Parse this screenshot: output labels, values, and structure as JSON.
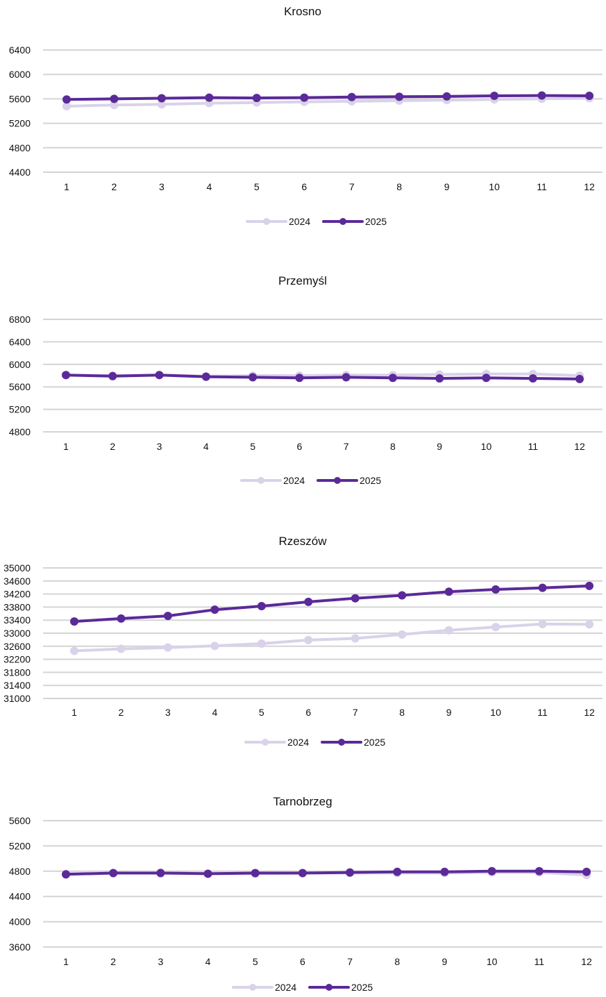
{
  "chart_data": [
    {
      "type": "line",
      "title": "Krosno",
      "categories": [
        "1",
        "2",
        "3",
        "4",
        "5",
        "6",
        "7",
        "8",
        "9",
        "10",
        "11",
        "12"
      ],
      "y_ticks": [
        4400,
        4800,
        5200,
        5600,
        6000,
        6400
      ],
      "ylim": [
        4400,
        6400
      ],
      "grid": true,
      "legend_position": "bottom",
      "series": [
        {
          "name": "2024",
          "color": "#d9d2e9",
          "values": [
            5480,
            5500,
            5510,
            5530,
            5540,
            5550,
            5560,
            5570,
            5580,
            5590,
            5600,
            5610
          ]
        },
        {
          "name": "2025",
          "color": "#5b2a99",
          "values": [
            5590,
            5600,
            5610,
            5620,
            5615,
            5620,
            5630,
            5635,
            5640,
            5650,
            5655,
            5650
          ]
        }
      ]
    },
    {
      "type": "line",
      "title": "Przemyśl",
      "categories": [
        "1",
        "2",
        "3",
        "4",
        "5",
        "6",
        "7",
        "8",
        "9",
        "10",
        "11",
        "12"
      ],
      "y_ticks": [
        4800,
        5200,
        5600,
        6000,
        6400,
        6800
      ],
      "ylim": [
        4800,
        6800
      ],
      "grid": true,
      "legend_position": "bottom",
      "series": [
        {
          "name": "2024",
          "color": "#d9d2e9",
          "values": [
            5810,
            5800,
            5810,
            5790,
            5800,
            5800,
            5810,
            5810,
            5820,
            5830,
            5830,
            5800
          ]
        },
        {
          "name": "2025",
          "color": "#5b2a99",
          "values": [
            5810,
            5790,
            5810,
            5780,
            5770,
            5760,
            5770,
            5760,
            5750,
            5760,
            5750,
            5740
          ]
        }
      ]
    },
    {
      "type": "line",
      "title": "Rzeszów",
      "categories": [
        "1",
        "2",
        "3",
        "4",
        "5",
        "6",
        "7",
        "8",
        "9",
        "10",
        "11",
        "12"
      ],
      "y_ticks": [
        31000,
        31400,
        31800,
        32200,
        32600,
        33000,
        33400,
        33800,
        34200,
        34600,
        35000
      ],
      "ylim": [
        31000,
        35000
      ],
      "grid": true,
      "legend_position": "bottom",
      "series": [
        {
          "name": "2024",
          "color": "#d9d2e9",
          "values": [
            32460,
            32520,
            32560,
            32610,
            32680,
            32790,
            32840,
            32960,
            33090,
            33190,
            33280,
            33270
          ]
        },
        {
          "name": "2025",
          "color": "#5b2a99",
          "values": [
            33360,
            33450,
            33530,
            33720,
            33830,
            33960,
            34070,
            34160,
            34270,
            34340,
            34390,
            34450
          ]
        }
      ]
    },
    {
      "type": "line",
      "title": "Tarnobrzeg",
      "categories": [
        "1",
        "2",
        "3",
        "4",
        "5",
        "6",
        "7",
        "8",
        "9",
        "10",
        "11",
        "12"
      ],
      "y_ticks": [
        3600,
        4000,
        4400,
        4800,
        5200,
        5600
      ],
      "ylim": [
        3600,
        5600
      ],
      "grid": true,
      "legend_position": "bottom",
      "series": [
        {
          "name": "2024",
          "color": "#d9d2e9",
          "values": [
            4760,
            4770,
            4780,
            4760,
            4760,
            4770,
            4770,
            4770,
            4770,
            4780,
            4780,
            4740
          ]
        },
        {
          "name": "2025",
          "color": "#5b2a99",
          "values": [
            4750,
            4770,
            4770,
            4760,
            4770,
            4770,
            4780,
            4790,
            4790,
            4800,
            4800,
            4790
          ]
        }
      ]
    }
  ]
}
